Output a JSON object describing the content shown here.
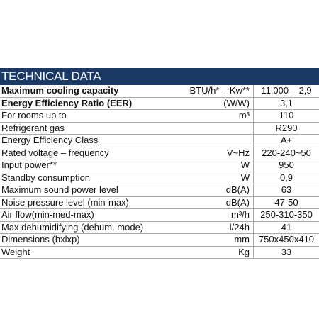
{
  "header": {
    "title": "TECHNICAL DATA"
  },
  "rows": [
    {
      "label": "Maximum cooling capacity",
      "unit": "BTU/h* – Kw**",
      "value": "11.000 – 2,9",
      "bold": true
    },
    {
      "label": "Energy Efficiency Ratio (EER)",
      "unit": "(W/W)",
      "value": "3,1",
      "bold": true
    },
    {
      "label": "For rooms up to",
      "unit": "m³",
      "value": "110"
    },
    {
      "label": "Refrigerant gas",
      "unit": "",
      "value": "R290"
    },
    {
      "label": "Energy Efficiency Class",
      "unit": "",
      "value": "A+"
    },
    {
      "label": "Rated voltage – frequency",
      "unit": "V~Hz",
      "value": "220-240~50"
    },
    {
      "label": "Input power**",
      "unit": "W",
      "value": "950"
    },
    {
      "label": "Standby consumption",
      "unit": "W",
      "value": "0,9"
    },
    {
      "label": "Maximum sound power level",
      "unit": "dB(A)",
      "value": "63"
    },
    {
      "label": "Noise pressure level (min-max)",
      "unit": "dB(A)",
      "value": "47-50"
    },
    {
      "label": "Air flow(min-med-max)",
      "unit": "m³/h",
      "value": "250-310-350"
    },
    {
      "label": "Max dehumidifying (dehum. mode)",
      "unit": "l/24h",
      "value": "41"
    },
    {
      "label": "Dimensions (hxlxp)",
      "unit": "mm",
      "value": "750x450x410"
    },
    {
      "label": "Weight",
      "unit": "Kg",
      "value": "33"
    }
  ]
}
